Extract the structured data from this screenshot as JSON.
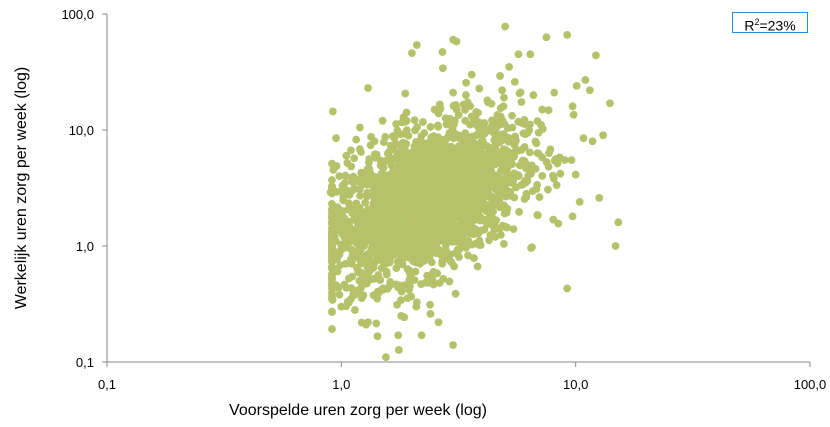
{
  "chart_data": {
    "type": "scatter",
    "xlabel": "Voorspelde uren zorg per week (log)",
    "ylabel": "Werkelijk uren zorg per week (log)",
    "x_scale": "log",
    "y_scale": "log",
    "xlim": [
      0.1,
      100
    ],
    "ylim": [
      0.1,
      100
    ],
    "x_ticks": [
      "0,1",
      "1,0",
      "10,0",
      "100,0"
    ],
    "y_ticks": [
      "0,1",
      "1,0",
      "10,0",
      "100,0"
    ],
    "grid": false,
    "annotation": {
      "prefix": "R",
      "sup": "2",
      "suffix": "=23%"
    },
    "point_color": "#b5c26a",
    "box_color": "#2a8fd6",
    "series": [
      {
        "points": [
          [
            5.0,
            78
          ],
          [
            9.2,
            66
          ],
          [
            7.5,
            63
          ],
          [
            3.0,
            60
          ],
          [
            3.1,
            58
          ],
          [
            2.1,
            54
          ],
          [
            2.0,
            46
          ],
          [
            2.7,
            47
          ],
          [
            5.7,
            45
          ],
          [
            6.4,
            45
          ],
          [
            12.2,
            44
          ],
          [
            5.2,
            35
          ],
          [
            3.6,
            30
          ],
          [
            11.0,
            27
          ],
          [
            5.5,
            26
          ],
          [
            10.1,
            24
          ],
          [
            1.3,
            23
          ],
          [
            11.5,
            22
          ],
          [
            8.1,
            21
          ],
          [
            6.6,
            20
          ],
          [
            14.0,
            17
          ],
          [
            9.7,
            16
          ],
          [
            7.2,
            15
          ],
          [
            4.2,
            18
          ],
          [
            3.4,
            20
          ],
          [
            3.0,
            21
          ],
          [
            2.5,
            15
          ],
          [
            1.9,
            12
          ],
          [
            1.5,
            12
          ],
          [
            13.1,
            9
          ],
          [
            10.8,
            8.5
          ],
          [
            11.8,
            8
          ],
          [
            9.6,
            5.5
          ],
          [
            12.6,
            2.6
          ],
          [
            10.4,
            2.4
          ],
          [
            9.7,
            1.8
          ],
          [
            15.2,
            1.6
          ],
          [
            14.8,
            1.0
          ],
          [
            9.2,
            0.43
          ],
          [
            0.9,
            2.9
          ],
          [
            0.92,
            1.2
          ],
          [
            0.95,
            8.5
          ],
          [
            1.0,
            0.3
          ],
          [
            1.3,
            0.22
          ],
          [
            1.55,
            0.11
          ],
          [
            3.0,
            0.14
          ],
          [
            2.2,
            0.17
          ],
          [
            1.75,
            0.17
          ],
          [
            2.6,
            0.22
          ],
          [
            2.4,
            0.26
          ],
          [
            1.8,
            0.25
          ],
          [
            1.1,
            0.35
          ],
          [
            1.05,
            6.0
          ],
          [
            1.2,
            10.5
          ],
          [
            0.98,
            4.0
          ],
          [
            7.8,
            6.8
          ],
          [
            8.6,
            4.2
          ],
          [
            6.1,
            9.2
          ],
          [
            5.9,
            11.5
          ],
          [
            6.8,
            3.1
          ]
        ]
      }
    ]
  }
}
